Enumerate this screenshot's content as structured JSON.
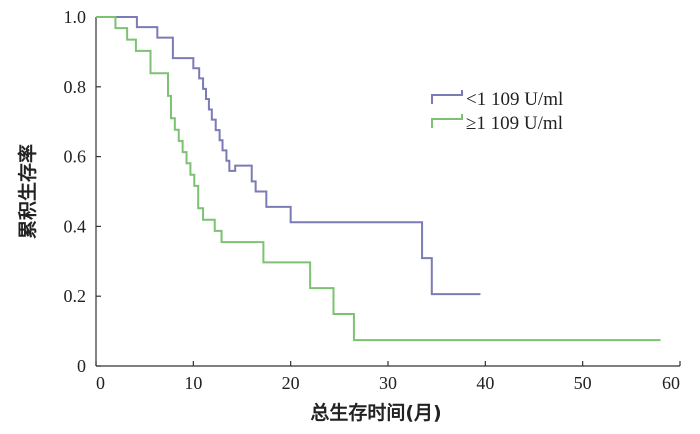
{
  "chart_data": {
    "type": "line",
    "step": true,
    "xlabel": "总生存时间(月)",
    "ylabel": "累积生存率",
    "xlim": [
      0,
      60
    ],
    "ylim": [
      0,
      1.0
    ],
    "xticks": [
      0,
      10,
      20,
      30,
      40,
      50,
      60
    ],
    "xtick_labels": [
      "0",
      "10",
      "20",
      "30",
      "40",
      "50",
      "60"
    ],
    "yticks": [
      0,
      0.2,
      0.4,
      0.6,
      0.8,
      1.0
    ],
    "ytick_labels": [
      "0",
      "0.2",
      "0.4",
      "0.6",
      "0.8",
      "1.0"
    ],
    "grid": false,
    "legend_position": "top-right",
    "series": [
      {
        "name": "<1 109 U/ml",
        "color": "#7b7bb6",
        "x": [
          0,
          1.2,
          4.2,
          6.3,
          7.9,
          10.0,
          10.6,
          11.0,
          11.3,
          11.6,
          11.9,
          12.3,
          12.7,
          13.0,
          13.4,
          13.7,
          14.3,
          16.0,
          16.4,
          17.5,
          20.0,
          33.5,
          34.5,
          39.5
        ],
        "y": [
          1.0,
          1.0,
          0.971,
          0.941,
          0.882,
          0.853,
          0.824,
          0.794,
          0.765,
          0.735,
          0.706,
          0.676,
          0.647,
          0.618,
          0.588,
          0.559,
          0.574,
          0.529,
          0.5,
          0.456,
          0.412,
          0.309,
          0.206,
          0.206
        ]
      },
      {
        "name": "≥1 109 U/ml",
        "color": "#7cc272",
        "x": [
          0,
          2.0,
          3.2,
          4.1,
          5.6,
          7.4,
          7.7,
          8.1,
          8.5,
          8.9,
          9.3,
          9.7,
          10.1,
          10.5,
          11.0,
          12.2,
          12.9,
          17.2,
          22.0,
          24.4,
          26.5,
          58.0
        ],
        "y": [
          1.0,
          0.968,
          0.935,
          0.903,
          0.839,
          0.774,
          0.71,
          0.677,
          0.645,
          0.613,
          0.581,
          0.548,
          0.516,
          0.452,
          0.419,
          0.387,
          0.355,
          0.297,
          0.223,
          0.149,
          0.074,
          0.074
        ]
      }
    ]
  }
}
